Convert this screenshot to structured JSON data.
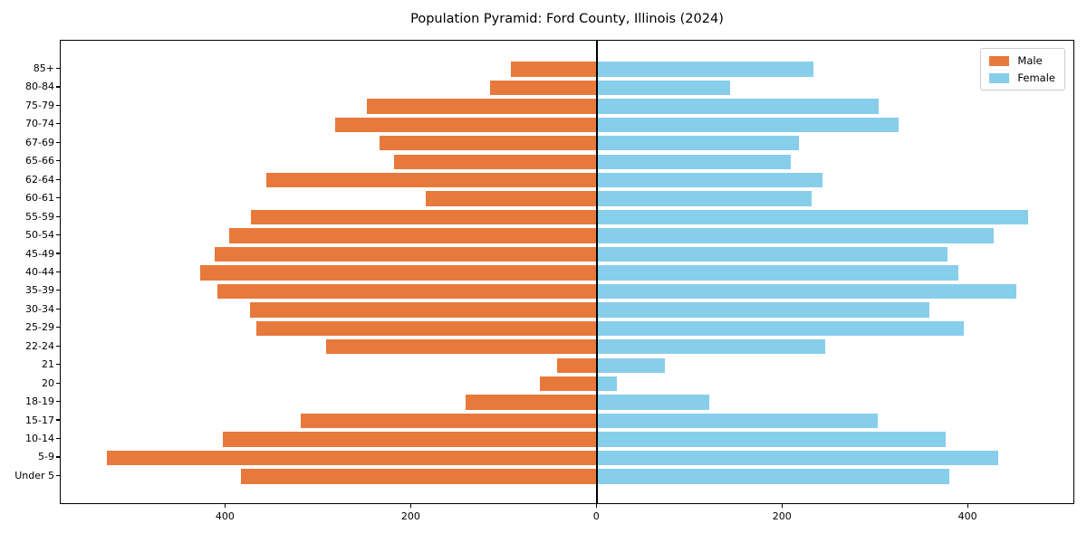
{
  "title": "Population Pyramid: Ford County, Illinois (2024)",
  "legend": {
    "male_label": "Male",
    "female_label": "Female"
  },
  "colors": {
    "male": "#e8793c",
    "female": "#87ceeb",
    "axis": "#000000",
    "legend_border": "#cccccc"
  },
  "chart_data": {
    "type": "bar",
    "variant": "population-pyramid",
    "orientation": "horizontal",
    "title": "Population Pyramid: Ford County, Illinois (2024)",
    "categories": [
      "85+",
      "80-84",
      "75-79",
      "70-74",
      "67-69",
      "65-66",
      "62-64",
      "60-61",
      "55-59",
      "50-54",
      "45-49",
      "40-44",
      "35-39",
      "30-34",
      "25-29",
      "22-24",
      "21",
      "20",
      "18-19",
      "15-17",
      "10-14",
      "5-9",
      "Under 5"
    ],
    "series": [
      {
        "name": "Male",
        "side": "left",
        "color": "#e8793c",
        "values": [
          93,
          115,
          248,
          282,
          234,
          219,
          356,
          185,
          373,
          396,
          412,
          428,
          409,
          374,
          367,
          292,
          43,
          62,
          142,
          319,
          403,
          528,
          384
        ]
      },
      {
        "name": "Female",
        "side": "right",
        "color": "#87ceeb",
        "values": [
          233,
          143,
          303,
          325,
          217,
          209,
          243,
          231,
          464,
          427,
          377,
          389,
          452,
          358,
          395,
          246,
          73,
          21,
          121,
          302,
          375,
          432,
          379
        ]
      }
    ],
    "xlim": [
      -578,
      515
    ],
    "x_ticks": [
      -400,
      -200,
      0,
      200,
      400
    ],
    "x_tick_labels": [
      "400",
      "200",
      "0",
      "200",
      "400"
    ],
    "xlabel": "",
    "ylabel": "",
    "grid": false,
    "legend_position": "upper right",
    "zero_line": true
  }
}
